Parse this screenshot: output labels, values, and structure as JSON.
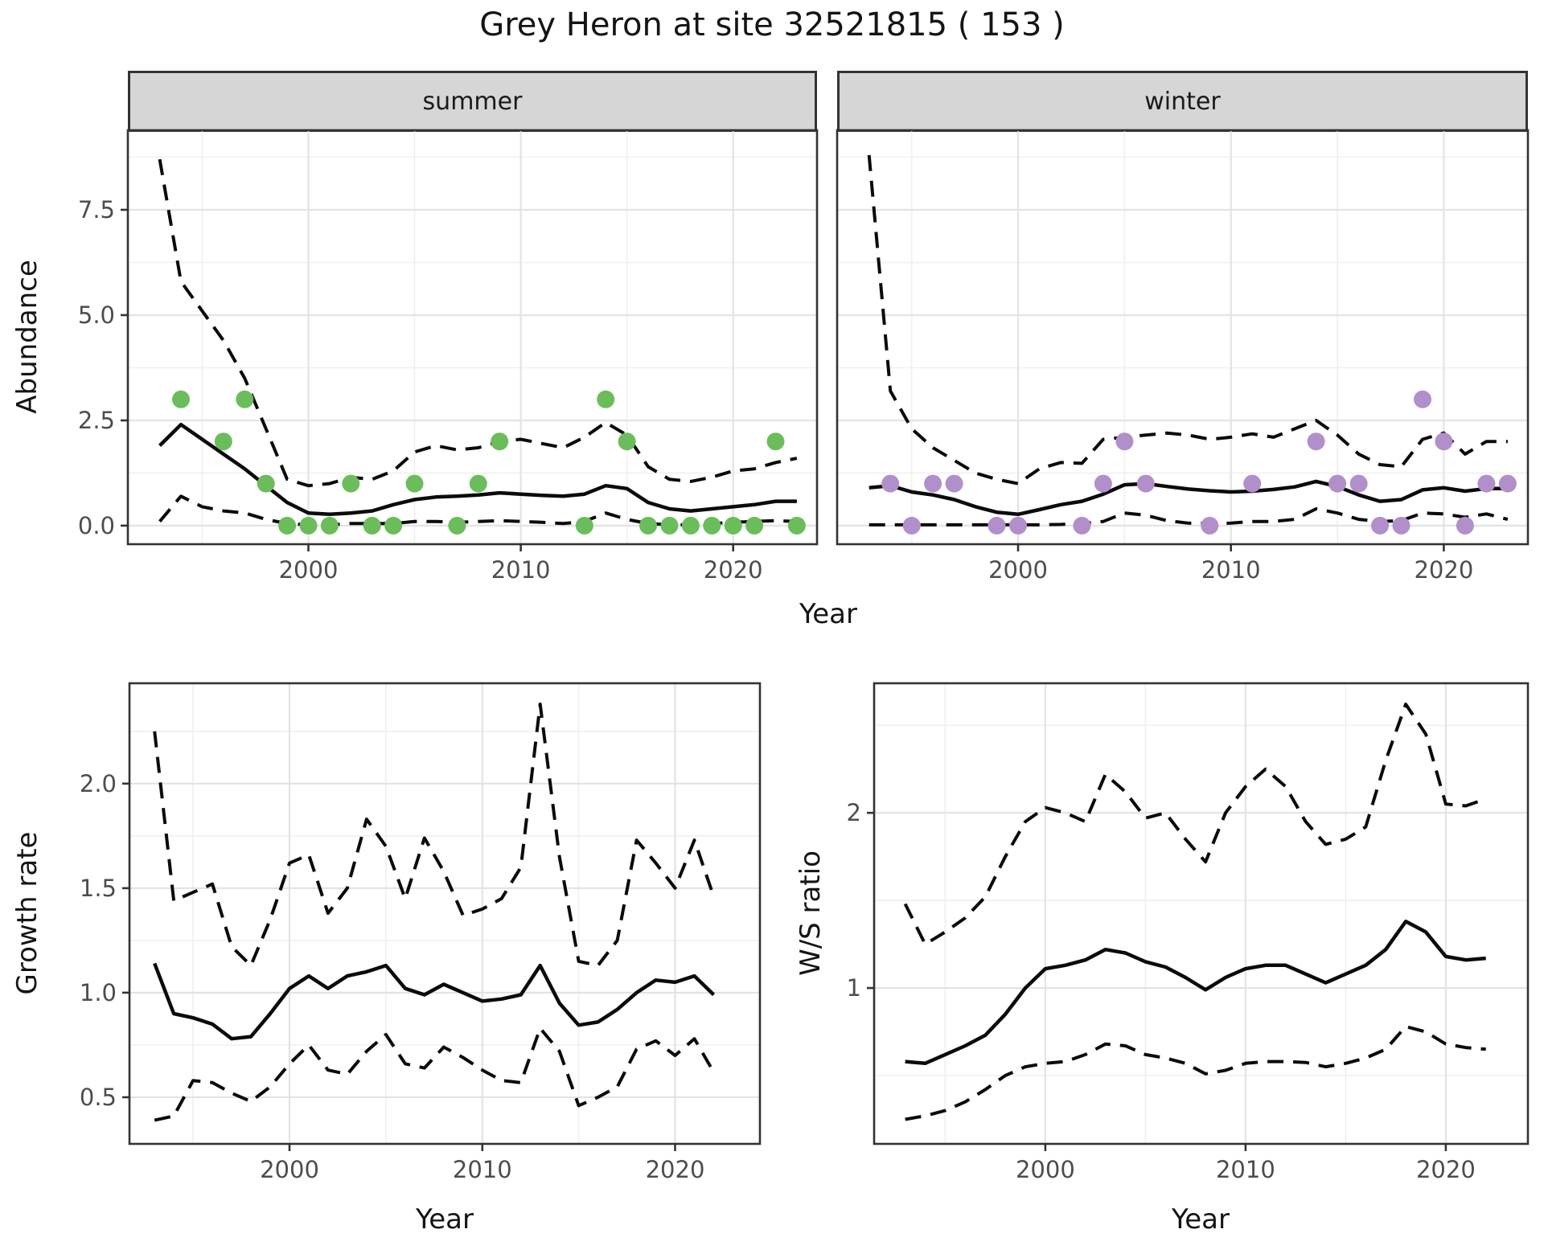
{
  "title": "Grey Heron at site 32521815 ( 153 )",
  "facets": [
    {
      "label": "summer"
    },
    {
      "label": "winter"
    }
  ],
  "axes": {
    "abundance": "Abundance",
    "growth_rate": "Growth rate",
    "ws_ratio": "W/S ratio",
    "year": "Year"
  },
  "colors": {
    "summer_point": "#6bbd5b",
    "winter_point": "#b18fcb",
    "line": "#0b0b0b",
    "strip_fill": "#d6d6d6",
    "panel_border": "#333333",
    "grid_major": "#e3e3e3",
    "grid_minor": "#efefef",
    "tick_mark": "#333333",
    "tick_label": "#4d4d4d"
  },
  "chart_data": [
    {
      "id": "abundance-summer",
      "type": "line",
      "facet": "summer",
      "xlabel": "Year",
      "ylabel": "Abundance",
      "xlim": [
        1991.5,
        2023.95
      ],
      "ylim": [
        -0.44,
        9.39
      ],
      "x_ticks": [
        2000,
        2010,
        2020
      ],
      "x_tick_labels": [
        "2000",
        "2010",
        "2020"
      ],
      "x_minor": [
        1995,
        2005,
        2015
      ],
      "y_ticks": [
        0.0,
        2.5,
        5.0,
        7.5
      ],
      "y_tick_labels": [
        "0.0",
        "2.5",
        "5.0",
        "7.5"
      ],
      "y_minor": [
        1.25,
        3.75,
        6.25,
        8.75
      ],
      "show_y_labels": true,
      "points": {
        "years": [
          1994,
          1996,
          1997,
          1998,
          1999,
          2000,
          2001,
          2002,
          2003,
          2004,
          2005,
          2007,
          2008,
          2009,
          2013,
          2014,
          2015,
          2016,
          2017,
          2018,
          2019,
          2020,
          2021,
          2022,
          2023
        ],
        "counts": [
          3,
          2,
          3,
          1,
          0,
          0,
          0,
          1,
          0,
          0,
          1,
          0,
          1,
          2,
          0,
          3,
          2,
          0,
          0,
          0,
          0,
          0,
          0,
          2,
          0
        ]
      },
      "years": [
        1993,
        1994,
        1995,
        1996,
        1997,
        1998,
        1999,
        2000,
        2001,
        2002,
        2003,
        2004,
        2005,
        2006,
        2007,
        2008,
        2009,
        2010,
        2011,
        2012,
        2013,
        2014,
        2015,
        2016,
        2017,
        2018,
        2019,
        2020,
        2021,
        2022,
        2023
      ],
      "estimate": [
        1.9,
        2.4,
        2.05,
        1.7,
        1.35,
        0.95,
        0.55,
        0.3,
        0.27,
        0.3,
        0.35,
        0.5,
        0.62,
        0.68,
        0.7,
        0.73,
        0.78,
        0.75,
        0.72,
        0.7,
        0.75,
        0.95,
        0.88,
        0.55,
        0.4,
        0.35,
        0.4,
        0.45,
        0.5,
        0.58,
        0.58
      ],
      "upper_ci": [
        8.7,
        5.8,
        5.1,
        4.4,
        3.5,
        2.3,
        1.1,
        0.95,
        1.0,
        1.15,
        1.1,
        1.3,
        1.75,
        1.9,
        1.8,
        1.85,
        2.0,
        2.05,
        1.95,
        1.85,
        2.1,
        2.45,
        2.15,
        1.4,
        1.1,
        1.05,
        1.15,
        1.3,
        1.35,
        1.5,
        1.6
      ],
      "lower_ci": [
        0.1,
        0.7,
        0.45,
        0.35,
        0.3,
        0.15,
        0.05,
        0.02,
        0.02,
        0.05,
        0.05,
        0.05,
        0.1,
        0.1,
        0.08,
        0.1,
        0.12,
        0.1,
        0.08,
        0.05,
        0.1,
        0.3,
        0.15,
        0.05,
        0.02,
        0.02,
        0.05,
        0.08,
        0.1,
        0.12,
        0.1
      ],
      "point_color_key": "summer_point"
    },
    {
      "id": "abundance-winter",
      "type": "line",
      "facet": "winter",
      "xlabel": "Year",
      "ylabel": "Abundance",
      "xlim": [
        1991.5,
        2023.95
      ],
      "ylim": [
        -0.44,
        9.39
      ],
      "x_ticks": [
        2000,
        2010,
        2020
      ],
      "x_tick_labels": [
        "2000",
        "2010",
        "2020"
      ],
      "x_minor": [
        1995,
        2005,
        2015
      ],
      "y_ticks": [
        0.0,
        2.5,
        5.0,
        7.5
      ],
      "y_tick_labels": [
        "0.0",
        "2.5",
        "5.0",
        "7.5"
      ],
      "y_minor": [
        1.25,
        3.75,
        6.25,
        8.75
      ],
      "show_y_labels": false,
      "points": {
        "years": [
          1994,
          1995,
          1996,
          1997,
          1999,
          2000,
          2003,
          2004,
          2005,
          2006,
          2009,
          2011,
          2014,
          2015,
          2016,
          2017,
          2018,
          2019,
          2020,
          2021,
          2022,
          2023
        ],
        "counts": [
          1,
          0,
          1,
          1,
          0,
          0,
          0,
          1,
          2,
          1,
          0,
          1,
          2,
          1,
          1,
          0,
          0,
          3,
          2,
          0,
          1,
          1
        ]
      },
      "years": [
        1993,
        1994,
        1995,
        1996,
        1997,
        1998,
        1999,
        2000,
        2001,
        2002,
        2003,
        2004,
        2005,
        2006,
        2007,
        2008,
        2009,
        2010,
        2011,
        2012,
        2013,
        2014,
        2015,
        2016,
        2017,
        2018,
        2019,
        2020,
        2021,
        2022,
        2023
      ],
      "estimate": [
        0.9,
        0.95,
        0.8,
        0.73,
        0.62,
        0.45,
        0.32,
        0.27,
        0.38,
        0.5,
        0.58,
        0.75,
        0.97,
        1.0,
        0.93,
        0.87,
        0.83,
        0.8,
        0.82,
        0.86,
        0.92,
        1.05,
        0.93,
        0.73,
        0.58,
        0.62,
        0.85,
        0.9,
        0.82,
        0.88,
        0.88
      ],
      "upper_ci": [
        8.8,
        3.2,
        2.3,
        1.85,
        1.55,
        1.25,
        1.1,
        1.0,
        1.35,
        1.5,
        1.48,
        2.05,
        2.1,
        2.15,
        2.2,
        2.15,
        2.05,
        2.1,
        2.18,
        2.1,
        2.3,
        2.5,
        2.15,
        1.7,
        1.45,
        1.4,
        2.05,
        2.2,
        1.7,
        2.0,
        2.0
      ],
      "lower_ci": [
        0.02,
        0.02,
        0.02,
        0.02,
        0.02,
        0.02,
        0.02,
        0.02,
        0.02,
        0.03,
        0.05,
        0.1,
        0.3,
        0.25,
        0.12,
        0.06,
        0.05,
        0.06,
        0.1,
        0.1,
        0.15,
        0.4,
        0.3,
        0.15,
        0.1,
        0.12,
        0.3,
        0.28,
        0.2,
        0.28,
        0.15
      ],
      "point_color_key": "winter_point"
    },
    {
      "id": "growth-rate",
      "type": "line",
      "xlabel": "Year",
      "ylabel": "Growth rate",
      "xlim": [
        1991.7,
        2024.4
      ],
      "ylim": [
        0.277,
        2.48
      ],
      "x_ticks": [
        2000,
        2010,
        2020
      ],
      "x_tick_labels": [
        "2000",
        "2010",
        "2020"
      ],
      "x_minor": [
        1995,
        2005,
        2015
      ],
      "y_ticks": [
        0.5,
        1.0,
        1.5,
        2.0
      ],
      "y_tick_labels": [
        "0.5",
        "1.0",
        "1.5",
        "2.0"
      ],
      "y_minor": [
        0.75,
        1.25,
        1.75,
        2.25
      ],
      "show_y_labels": true,
      "years": [
        1993,
        1994,
        1995,
        1996,
        1997,
        1998,
        1999,
        2000,
        2001,
        2002,
        2003,
        2004,
        2005,
        2006,
        2007,
        2008,
        2009,
        2010,
        2011,
        2012,
        2013,
        2014,
        2015,
        2016,
        2017,
        2018,
        2019,
        2020,
        2021,
        2022
      ],
      "estimate": [
        1.14,
        0.9,
        0.88,
        0.85,
        0.78,
        0.79,
        0.9,
        1.02,
        1.08,
        1.02,
        1.08,
        1.1,
        1.13,
        1.02,
        0.99,
        1.04,
        1.0,
        0.96,
        0.97,
        0.99,
        1.13,
        0.95,
        0.845,
        0.86,
        0.92,
        1.0,
        1.06,
        1.05,
        1.08,
        0.99
      ],
      "upper_ci": [
        2.25,
        1.44,
        1.48,
        1.52,
        1.22,
        1.13,
        1.35,
        1.62,
        1.66,
        1.38,
        1.5,
        1.83,
        1.7,
        1.45,
        1.74,
        1.58,
        1.37,
        1.4,
        1.45,
        1.6,
        2.38,
        1.65,
        1.15,
        1.13,
        1.25,
        1.73,
        1.62,
        1.5,
        1.73,
        1.46
      ],
      "lower_ci": [
        0.39,
        0.41,
        0.58,
        0.57,
        0.52,
        0.48,
        0.55,
        0.66,
        0.75,
        0.63,
        0.61,
        0.72,
        0.8,
        0.66,
        0.64,
        0.74,
        0.69,
        0.63,
        0.58,
        0.57,
        0.83,
        0.72,
        0.46,
        0.5,
        0.55,
        0.73,
        0.77,
        0.7,
        0.78,
        0.62
      ]
    },
    {
      "id": "ws-ratio",
      "type": "line",
      "xlabel": "Year",
      "ylabel": "W/S ratio",
      "xlim": [
        1991.45,
        2024.1
      ],
      "ylim": [
        0.11,
        2.74
      ],
      "x_ticks": [
        2000,
        2010,
        2020
      ],
      "x_tick_labels": [
        "2000",
        "2010",
        "2020"
      ],
      "x_minor": [
        1995,
        2005,
        2015
      ],
      "y_ticks": [
        1,
        2
      ],
      "y_tick_labels": [
        "1",
        "2"
      ],
      "y_minor": [
        0.5,
        1.5,
        2.5
      ],
      "show_y_labels": true,
      "years": [
        1993,
        1994,
        1995,
        1996,
        1997,
        1998,
        1999,
        2000,
        2001,
        2002,
        2003,
        2004,
        2005,
        2006,
        2007,
        2008,
        2009,
        2010,
        2011,
        2012,
        2013,
        2014,
        2015,
        2016,
        2017,
        2018,
        2019,
        2020,
        2021,
        2022
      ],
      "estimate": [
        0.58,
        0.57,
        0.62,
        0.67,
        0.73,
        0.85,
        1.0,
        1.11,
        1.13,
        1.16,
        1.22,
        1.2,
        1.15,
        1.12,
        1.06,
        0.99,
        1.06,
        1.11,
        1.13,
        1.13,
        1.08,
        1.03,
        1.08,
        1.13,
        1.22,
        1.38,
        1.32,
        1.18,
        1.16,
        1.17
      ],
      "upper_ci": [
        1.48,
        1.25,
        1.32,
        1.4,
        1.52,
        1.75,
        1.95,
        2.03,
        2.0,
        1.95,
        2.22,
        2.12,
        1.97,
        2.0,
        1.85,
        1.72,
        2.0,
        2.15,
        2.25,
        2.15,
        1.95,
        1.82,
        1.85,
        1.92,
        2.3,
        2.62,
        2.45,
        2.05,
        2.04,
        2.08
      ],
      "lower_ci": [
        0.25,
        0.27,
        0.3,
        0.35,
        0.42,
        0.5,
        0.55,
        0.57,
        0.58,
        0.62,
        0.68,
        0.67,
        0.62,
        0.6,
        0.57,
        0.51,
        0.53,
        0.57,
        0.58,
        0.58,
        0.575,
        0.55,
        0.57,
        0.6,
        0.65,
        0.78,
        0.75,
        0.68,
        0.66,
        0.65
      ]
    }
  ]
}
